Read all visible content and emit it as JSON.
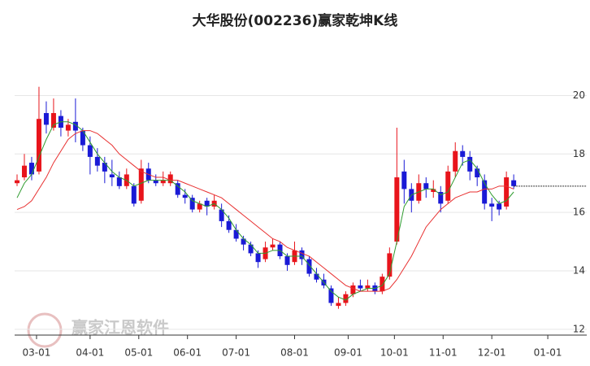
{
  "chart_data": {
    "type": "candlestick",
    "title": "大华股份(002236)赢家乾坤K线",
    "watermark": "赢家江恩软件",
    "x": [
      0,
      3,
      6,
      9,
      12,
      15,
      18,
      21,
      24,
      27,
      30,
      33,
      36,
      39,
      42,
      45,
      48,
      51,
      54,
      57,
      60,
      63,
      66,
      69,
      72,
      75,
      78,
      81,
      84,
      87,
      90,
      93,
      96,
      99,
      102,
      105,
      108,
      111,
      114,
      117,
      120,
      123,
      126,
      129,
      132,
      135,
      138,
      141,
      144,
      147,
      150,
      153,
      156,
      159,
      162,
      165,
      168,
      171,
      174,
      177,
      180,
      183,
      186,
      189,
      192,
      195,
      198,
      201,
      204
    ],
    "ohlc": [
      [
        17.0,
        17.3,
        16.9,
        17.1
      ],
      [
        17.2,
        18.0,
        17.1,
        17.6
      ],
      [
        17.7,
        17.9,
        17.1,
        17.3
      ],
      [
        17.4,
        20.3,
        17.3,
        19.2
      ],
      [
        19.4,
        19.8,
        18.7,
        19.0
      ],
      [
        18.9,
        19.9,
        18.8,
        19.4
      ],
      [
        19.3,
        19.5,
        18.6,
        18.9
      ],
      [
        18.8,
        19.2,
        18.6,
        19.0
      ],
      [
        19.1,
        19.9,
        18.4,
        18.8
      ],
      [
        18.8,
        18.9,
        18.1,
        18.3
      ],
      [
        18.3,
        18.6,
        17.3,
        17.9
      ],
      [
        17.9,
        18.2,
        17.4,
        17.6
      ],
      [
        17.7,
        17.9,
        17.0,
        17.4
      ],
      [
        17.3,
        17.8,
        16.9,
        17.2
      ],
      [
        17.2,
        17.4,
        16.8,
        16.9
      ],
      [
        16.9,
        17.5,
        16.8,
        17.3
      ],
      [
        16.9,
        17.0,
        16.2,
        16.3
      ],
      [
        16.4,
        17.8,
        16.3,
        17.5
      ],
      [
        17.5,
        17.7,
        17.0,
        17.1
      ],
      [
        17.1,
        17.3,
        16.9,
        17.0
      ],
      [
        17.0,
        17.4,
        16.9,
        17.1
      ],
      [
        17.0,
        17.4,
        16.9,
        17.3
      ],
      [
        17.0,
        17.1,
        16.5,
        16.6
      ],
      [
        16.6,
        16.8,
        16.3,
        16.5
      ],
      [
        16.5,
        16.6,
        16.0,
        16.1
      ],
      [
        16.1,
        16.4,
        16.0,
        16.3
      ],
      [
        16.4,
        16.5,
        15.9,
        16.2
      ],
      [
        16.2,
        16.6,
        16.1,
        16.4
      ],
      [
        16.1,
        16.3,
        15.5,
        15.7
      ],
      [
        15.7,
        15.9,
        15.3,
        15.4
      ],
      [
        15.4,
        15.6,
        15.0,
        15.1
      ],
      [
        15.1,
        15.2,
        14.7,
        14.9
      ],
      [
        14.9,
        15.0,
        14.5,
        14.6
      ],
      [
        14.6,
        14.7,
        14.1,
        14.3
      ],
      [
        14.4,
        15.0,
        14.3,
        14.8
      ],
      [
        14.8,
        15.1,
        14.7,
        14.9
      ],
      [
        14.9,
        15.0,
        14.4,
        14.5
      ],
      [
        14.5,
        14.6,
        14.0,
        14.2
      ],
      [
        14.3,
        15.0,
        14.2,
        14.7
      ],
      [
        14.7,
        14.8,
        14.2,
        14.4
      ],
      [
        14.4,
        14.5,
        13.8,
        13.9
      ],
      [
        13.9,
        14.1,
        13.6,
        13.7
      ],
      [
        13.7,
        13.9,
        13.4,
        13.5
      ],
      [
        13.4,
        13.5,
        12.8,
        12.9
      ],
      [
        12.8,
        13.1,
        12.7,
        12.9
      ],
      [
        12.9,
        13.3,
        12.8,
        13.2
      ],
      [
        13.2,
        13.6,
        13.1,
        13.5
      ],
      [
        13.5,
        13.7,
        13.3,
        13.4
      ],
      [
        13.4,
        13.7,
        13.3,
        13.5
      ],
      [
        13.5,
        13.6,
        13.2,
        13.3
      ],
      [
        13.3,
        13.9,
        13.2,
        13.8
      ],
      [
        13.8,
        14.8,
        13.7,
        14.6
      ],
      [
        15.0,
        18.9,
        14.9,
        17.2
      ],
      [
        17.4,
        17.8,
        16.3,
        16.8
      ],
      [
        16.8,
        17.0,
        16.0,
        16.4
      ],
      [
        16.4,
        17.3,
        16.3,
        17.0
      ],
      [
        17.0,
        17.2,
        16.5,
        16.8
      ],
      [
        16.7,
        17.1,
        16.5,
        16.8
      ],
      [
        16.7,
        16.9,
        16.0,
        16.3
      ],
      [
        16.4,
        17.6,
        16.3,
        17.4
      ],
      [
        17.4,
        18.4,
        17.2,
        18.1
      ],
      [
        18.1,
        18.3,
        17.6,
        17.9
      ],
      [
        17.9,
        18.1,
        17.1,
        17.4
      ],
      [
        17.5,
        17.6,
        16.9,
        17.2
      ],
      [
        17.1,
        17.3,
        16.1,
        16.3
      ],
      [
        16.3,
        16.5,
        15.7,
        16.2
      ],
      [
        16.3,
        16.4,
        15.9,
        16.1
      ],
      [
        16.2,
        17.4,
        16.1,
        17.2
      ],
      [
        17.1,
        17.3,
        16.8,
        16.9
      ]
    ],
    "up_color": "#e8141b",
    "down_color": "#1a1ad6",
    "lines": [
      {
        "color": "#2e9b2e",
        "values": [
          16.5,
          17.0,
          17.3,
          17.9,
          18.5,
          19.0,
          19.1,
          19.1,
          19.0,
          18.8,
          18.4,
          18.0,
          17.7,
          17.4,
          17.2,
          17.1,
          16.9,
          17.0,
          17.1,
          17.1,
          17.1,
          17.1,
          16.9,
          16.7,
          16.4,
          16.3,
          16.2,
          16.3,
          16.1,
          15.8,
          15.4,
          15.1,
          14.9,
          14.6,
          14.6,
          14.7,
          14.7,
          14.5,
          14.5,
          14.5,
          14.2,
          13.9,
          13.6,
          13.3,
          13.1,
          13.0,
          13.2,
          13.3,
          13.4,
          13.4,
          13.5,
          13.9,
          15.0,
          16.2,
          16.6,
          16.7,
          16.8,
          16.8,
          16.6,
          16.7,
          17.2,
          17.7,
          17.8,
          17.5,
          17.0,
          16.6,
          16.3,
          16.4,
          16.7
        ]
      },
      {
        "color": "#e83030",
        "values": [
          16.1,
          16.2,
          16.4,
          16.8,
          17.2,
          17.7,
          18.1,
          18.5,
          18.7,
          18.8,
          18.8,
          18.7,
          18.5,
          18.3,
          18.0,
          17.8,
          17.6,
          17.4,
          17.3,
          17.2,
          17.2,
          17.1,
          17.1,
          17.0,
          16.9,
          16.8,
          16.7,
          16.6,
          16.5,
          16.3,
          16.1,
          15.9,
          15.7,
          15.5,
          15.3,
          15.1,
          15.0,
          14.8,
          14.7,
          14.6,
          14.5,
          14.3,
          14.1,
          13.9,
          13.7,
          13.5,
          13.4,
          13.3,
          13.3,
          13.3,
          13.3,
          13.4,
          13.7,
          14.1,
          14.5,
          15.0,
          15.5,
          15.8,
          16.1,
          16.3,
          16.5,
          16.6,
          16.7,
          16.7,
          16.8,
          16.8,
          16.9,
          16.9,
          16.8
        ]
      }
    ],
    "xlim": [
      -1,
      234
    ],
    "ylim": [
      11.8,
      21.6
    ],
    "xticks": [
      {
        "value": 8,
        "label": "03-01"
      },
      {
        "value": 30,
        "label": "04-01"
      },
      {
        "value": 50,
        "label": "05-01"
      },
      {
        "value": 70,
        "label": "06-01"
      },
      {
        "value": 90,
        "label": "07-01"
      },
      {
        "value": 114,
        "label": "08-01"
      },
      {
        "value": 136,
        "label": "09-01"
      },
      {
        "value": 155,
        "label": "10-01"
      },
      {
        "value": 175,
        "label": "11-01"
      },
      {
        "value": 195,
        "label": "12-01"
      },
      {
        "value": 218,
        "label": "01-01"
      }
    ],
    "yticks": [
      12,
      14,
      16,
      18,
      20
    ],
    "grid": true
  }
}
